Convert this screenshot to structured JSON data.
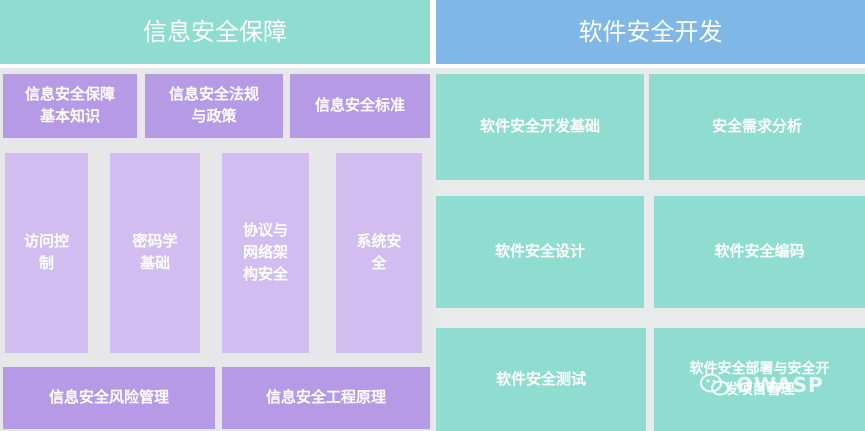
{
  "left": {
    "header": "信息安全保障",
    "top_row": [
      "信息安全保障\n基本知识",
      "信息安全法规\n与政策",
      "信息安全标准"
    ],
    "middle": [
      "访问控\n制",
      "密码学\n基础",
      "协议与\n网络架\n构安全",
      "系统安\n全"
    ],
    "bottom": [
      "信息安全风险管理",
      "信息安全工程原理"
    ]
  },
  "right": {
    "header": "软件安全开发",
    "cells": [
      "软件安全开发基础",
      "安全需求分析",
      "软件安全设计",
      "软件安全编码",
      "软件安全测试",
      "软件安全部署与安全开\n发项目管理"
    ]
  },
  "watermark": {
    "text": "OWASP",
    "icon": "wechat-icon"
  },
  "colors": {
    "teal": "#8fdcd0",
    "blue": "#7fb7e7",
    "purple": "#b79ae6",
    "lavender": "#d1bdf0",
    "panel": "#e7e7ea"
  }
}
